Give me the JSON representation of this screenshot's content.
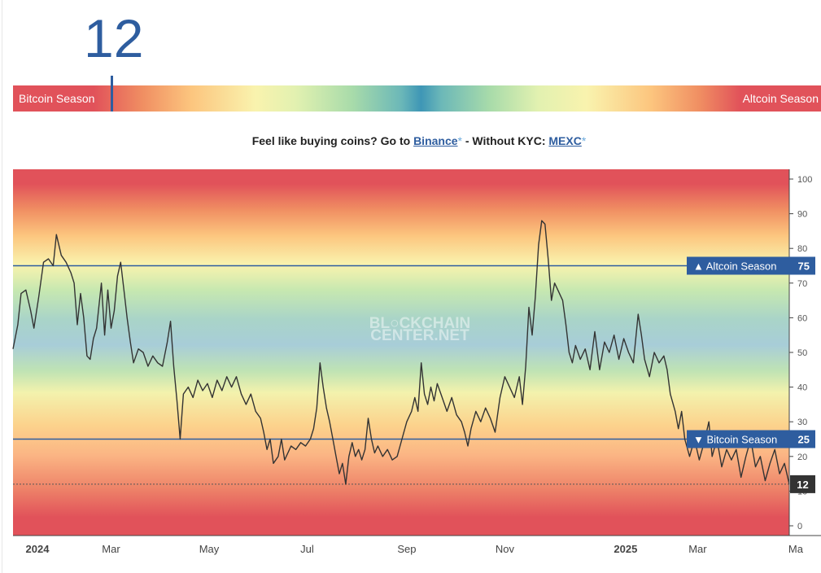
{
  "header": {
    "index_value": "12",
    "bar_left_label": "Bitcoin Season",
    "bar_right_label": "Altcoin Season"
  },
  "promo": {
    "text_before": "Feel like buying coins? Go to ",
    "binance_label": "Binance",
    "star": "*",
    "text_middle": " - Without KYC: ",
    "mexc_label": "MEXC"
  },
  "chart_data": {
    "type": "line",
    "watermark_line1": "BL○CKCHAIN",
    "watermark_line2": "CENTER.NET",
    "ylim": [
      0,
      100
    ],
    "y_ticks": [
      "0",
      "10",
      "20",
      "30",
      "40",
      "50",
      "60",
      "70",
      "80",
      "90",
      "100"
    ],
    "x_ticks": [
      "2024",
      "Mar",
      "May",
      "Jul",
      "Sep",
      "Nov",
      "2025",
      "Mar",
      "Ma"
    ],
    "x_tick_dates": [
      "2024-01-01",
      "2024-03-01",
      "2024-05-01",
      "2024-07-01",
      "2024-09-01",
      "2024-11-01",
      "2025-01-01",
      "2025-03-01",
      "2025-05-01"
    ],
    "x_range": [
      "2023-12-31",
      "2025-04-27"
    ],
    "reference_lines": [
      {
        "label": "▲ Altcoin Season",
        "value": "75",
        "y": 75
      },
      {
        "label": "▼ Bitcoin Season",
        "value": "25",
        "y": 25
      }
    ],
    "current_value": {
      "label": "12",
      "y": 12
    },
    "colors": {
      "line": "#333333",
      "reference": "#2e5d9f",
      "tag_bg": "#2e5d9f",
      "current_tag_bg": "#333333"
    },
    "series": [
      {
        "points": [
          [
            "2023-12-31",
            51
          ],
          [
            "2024-01-03",
            58
          ],
          [
            "2024-01-05",
            67
          ],
          [
            "2024-01-08",
            68
          ],
          [
            "2024-01-11",
            62
          ],
          [
            "2024-01-13",
            57
          ],
          [
            "2024-01-16",
            66
          ],
          [
            "2024-01-19",
            76
          ],
          [
            "2024-01-22",
            77
          ],
          [
            "2024-01-25",
            75
          ],
          [
            "2024-01-27",
            84
          ],
          [
            "2024-01-30",
            78
          ],
          [
            "2024-02-02",
            76
          ],
          [
            "2024-02-05",
            73
          ],
          [
            "2024-02-07",
            70
          ],
          [
            "2024-02-09",
            58
          ],
          [
            "2024-02-11",
            67
          ],
          [
            "2024-02-13",
            60
          ],
          [
            "2024-02-15",
            49
          ],
          [
            "2024-02-17",
            48
          ],
          [
            "2024-02-19",
            54
          ],
          [
            "2024-02-21",
            57
          ],
          [
            "2024-02-24",
            70
          ],
          [
            "2024-02-26",
            55
          ],
          [
            "2024-02-28",
            68
          ],
          [
            "2024-03-01",
            57
          ],
          [
            "2024-03-03",
            62
          ],
          [
            "2024-03-05",
            72
          ],
          [
            "2024-03-07",
            76
          ],
          [
            "2024-03-09",
            68
          ],
          [
            "2024-03-11",
            60
          ],
          [
            "2024-03-13",
            53
          ],
          [
            "2024-03-15",
            47
          ],
          [
            "2024-03-18",
            51
          ],
          [
            "2024-03-21",
            50
          ],
          [
            "2024-03-24",
            46
          ],
          [
            "2024-03-27",
            49
          ],
          [
            "2024-03-30",
            47
          ],
          [
            "2024-04-02",
            46
          ],
          [
            "2024-04-05",
            53
          ],
          [
            "2024-04-07",
            59
          ],
          [
            "2024-04-09",
            46
          ],
          [
            "2024-04-11",
            36
          ],
          [
            "2024-04-13",
            25
          ],
          [
            "2024-04-15",
            38
          ],
          [
            "2024-04-18",
            40
          ],
          [
            "2024-04-21",
            37
          ],
          [
            "2024-04-24",
            42
          ],
          [
            "2024-04-27",
            39
          ],
          [
            "2024-04-30",
            41
          ],
          [
            "2024-05-03",
            37
          ],
          [
            "2024-05-06",
            42
          ],
          [
            "2024-05-09",
            39
          ],
          [
            "2024-05-12",
            43
          ],
          [
            "2024-05-15",
            40
          ],
          [
            "2024-05-18",
            43
          ],
          [
            "2024-05-21",
            38
          ],
          [
            "2024-05-24",
            35
          ],
          [
            "2024-05-27",
            38
          ],
          [
            "2024-05-30",
            33
          ],
          [
            "2024-06-02",
            31
          ],
          [
            "2024-06-04",
            27
          ],
          [
            "2024-06-06",
            22
          ],
          [
            "2024-06-08",
            25
          ],
          [
            "2024-06-10",
            18
          ],
          [
            "2024-06-13",
            20
          ],
          [
            "2024-06-15",
            25
          ],
          [
            "2024-06-17",
            19
          ],
          [
            "2024-06-19",
            21
          ],
          [
            "2024-06-21",
            23
          ],
          [
            "2024-06-24",
            22
          ],
          [
            "2024-06-27",
            24
          ],
          [
            "2024-06-30",
            23
          ],
          [
            "2024-07-03",
            25
          ],
          [
            "2024-07-05",
            28
          ],
          [
            "2024-07-07",
            34
          ],
          [
            "2024-07-09",
            47
          ],
          [
            "2024-07-11",
            40
          ],
          [
            "2024-07-13",
            34
          ],
          [
            "2024-07-15",
            30
          ],
          [
            "2024-07-17",
            25
          ],
          [
            "2024-07-19",
            20
          ],
          [
            "2024-07-21",
            15
          ],
          [
            "2024-07-23",
            18
          ],
          [
            "2024-07-25",
            12
          ],
          [
            "2024-07-27",
            20
          ],
          [
            "2024-07-29",
            24
          ],
          [
            "2024-07-31",
            20
          ],
          [
            "2024-08-02",
            22
          ],
          [
            "2024-08-04",
            19
          ],
          [
            "2024-08-06",
            22
          ],
          [
            "2024-08-08",
            31
          ],
          [
            "2024-08-10",
            25
          ],
          [
            "2024-08-12",
            21
          ],
          [
            "2024-08-14",
            23
          ],
          [
            "2024-08-17",
            20
          ],
          [
            "2024-08-20",
            22
          ],
          [
            "2024-08-23",
            19
          ],
          [
            "2024-08-26",
            20
          ],
          [
            "2024-08-29",
            25
          ],
          [
            "2024-09-01",
            30
          ],
          [
            "2024-09-04",
            33
          ],
          [
            "2024-09-06",
            37
          ],
          [
            "2024-09-08",
            33
          ],
          [
            "2024-09-10",
            47
          ],
          [
            "2024-09-12",
            38
          ],
          [
            "2024-09-14",
            35
          ],
          [
            "2024-09-16",
            40
          ],
          [
            "2024-09-18",
            36
          ],
          [
            "2024-09-20",
            41
          ],
          [
            "2024-09-23",
            37
          ],
          [
            "2024-09-26",
            33
          ],
          [
            "2024-09-29",
            37
          ],
          [
            "2024-10-02",
            32
          ],
          [
            "2024-10-05",
            30
          ],
          [
            "2024-10-07",
            27
          ],
          [
            "2024-10-09",
            23
          ],
          [
            "2024-10-11",
            28
          ],
          [
            "2024-10-14",
            33
          ],
          [
            "2024-10-17",
            30
          ],
          [
            "2024-10-20",
            34
          ],
          [
            "2024-10-23",
            31
          ],
          [
            "2024-10-26",
            27
          ],
          [
            "2024-10-29",
            37
          ],
          [
            "2024-11-01",
            43
          ],
          [
            "2024-11-04",
            40
          ],
          [
            "2024-11-07",
            37
          ],
          [
            "2024-11-10",
            43
          ],
          [
            "2024-11-12",
            35
          ],
          [
            "2024-11-14",
            46
          ],
          [
            "2024-11-16",
            63
          ],
          [
            "2024-11-18",
            55
          ],
          [
            "2024-11-20",
            66
          ],
          [
            "2024-11-22",
            81
          ],
          [
            "2024-11-24",
            88
          ],
          [
            "2024-11-26",
            87
          ],
          [
            "2024-11-28",
            77
          ],
          [
            "2024-11-30",
            65
          ],
          [
            "2024-12-02",
            70
          ],
          [
            "2024-12-04",
            68
          ],
          [
            "2024-12-07",
            65
          ],
          [
            "2024-12-09",
            58
          ],
          [
            "2024-12-11",
            50
          ],
          [
            "2024-12-13",
            47
          ],
          [
            "2024-12-15",
            52
          ],
          [
            "2024-12-18",
            48
          ],
          [
            "2024-12-21",
            51
          ],
          [
            "2024-12-24",
            45
          ],
          [
            "2024-12-27",
            56
          ],
          [
            "2024-12-30",
            45
          ],
          [
            "2025-01-02",
            53
          ],
          [
            "2025-01-05",
            50
          ],
          [
            "2025-01-08",
            55
          ],
          [
            "2025-01-11",
            48
          ],
          [
            "2025-01-14",
            54
          ],
          [
            "2025-01-17",
            50
          ],
          [
            "2025-01-20",
            47
          ],
          [
            "2025-01-23",
            61
          ],
          [
            "2025-01-25",
            55
          ],
          [
            "2025-01-27",
            48
          ],
          [
            "2025-01-30",
            43
          ],
          [
            "2025-02-02",
            50
          ],
          [
            "2025-02-05",
            47
          ],
          [
            "2025-02-08",
            49
          ],
          [
            "2025-02-10",
            45
          ],
          [
            "2025-02-12",
            38
          ],
          [
            "2025-02-15",
            33
          ],
          [
            "2025-02-17",
            28
          ],
          [
            "2025-02-19",
            33
          ],
          [
            "2025-02-21",
            25
          ],
          [
            "2025-02-24",
            20
          ],
          [
            "2025-02-27",
            25
          ],
          [
            "2025-03-02",
            19
          ],
          [
            "2025-03-05",
            24
          ],
          [
            "2025-03-08",
            30
          ],
          [
            "2025-03-10",
            20
          ],
          [
            "2025-03-13",
            25
          ],
          [
            "2025-03-16",
            17
          ],
          [
            "2025-03-19",
            22
          ],
          [
            "2025-03-22",
            19
          ],
          [
            "2025-03-25",
            22
          ],
          [
            "2025-03-28",
            14
          ],
          [
            "2025-03-31",
            20
          ],
          [
            "2025-04-03",
            25
          ],
          [
            "2025-04-06",
            17
          ],
          [
            "2025-04-09",
            20
          ],
          [
            "2025-04-12",
            13
          ],
          [
            "2025-04-15",
            18
          ],
          [
            "2025-04-18",
            22
          ],
          [
            "2025-04-21",
            15
          ],
          [
            "2025-04-24",
            18
          ],
          [
            "2025-04-27",
            12
          ]
        ]
      }
    ]
  }
}
